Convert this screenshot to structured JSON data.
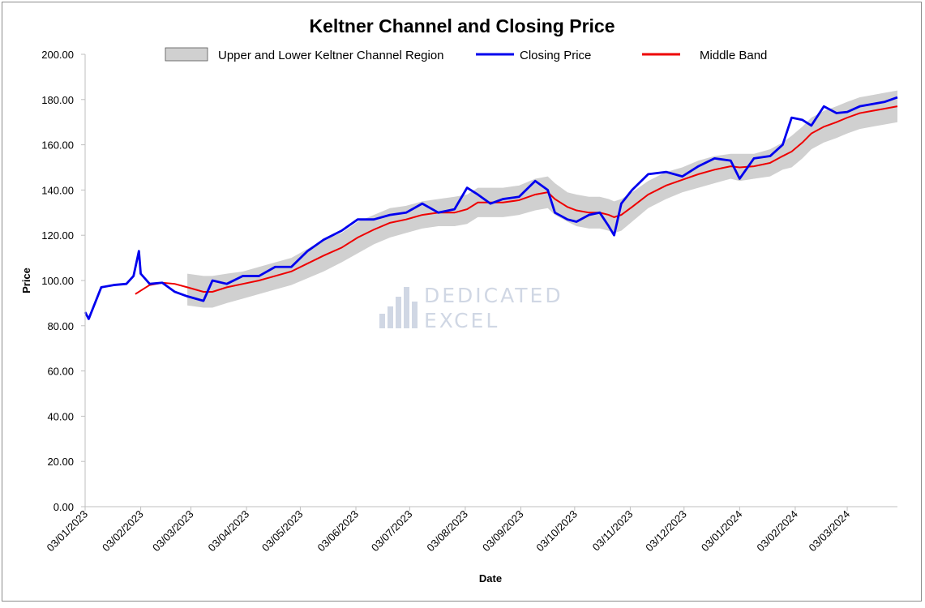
{
  "chart_data": {
    "type": "line",
    "title": "Keltner Channel and Closing Price",
    "xlabel": "Date",
    "ylabel": "Price",
    "ylim": [
      0,
      200
    ],
    "xlim": [
      "2023-01-03",
      "2024-03-31"
    ],
    "y_ticks": [
      "0.00",
      "20.00",
      "40.00",
      "60.00",
      "80.00",
      "100.00",
      "120.00",
      "140.00",
      "160.00",
      "180.00",
      "200.00"
    ],
    "x_ticks": [
      {
        "date": "2023-01-03",
        "label": "03/01/2023"
      },
      {
        "date": "2023-02-03",
        "label": "03/02/2023"
      },
      {
        "date": "2023-03-03",
        "label": "03/03/2023"
      },
      {
        "date": "2023-04-03",
        "label": "03/04/2023"
      },
      {
        "date": "2023-05-03",
        "label": "03/05/2023"
      },
      {
        "date": "2023-06-03",
        "label": "03/06/2023"
      },
      {
        "date": "2023-07-03",
        "label": "03/07/2023"
      },
      {
        "date": "2023-08-03",
        "label": "03/08/2023"
      },
      {
        "date": "2023-09-03",
        "label": "03/09/2023"
      },
      {
        "date": "2023-10-03",
        "label": "03/10/2023"
      },
      {
        "date": "2023-11-03",
        "label": "03/11/2023"
      },
      {
        "date": "2023-12-03",
        "label": "03/12/2023"
      },
      {
        "date": "2024-01-03",
        "label": "03/01/2024"
      },
      {
        "date": "2024-02-03",
        "label": "03/02/2024"
      },
      {
        "date": "2024-03-03",
        "label": "03/03/2024"
      }
    ],
    "grid": false,
    "legend_position": "top",
    "legend": [
      "Upper and Lower Keltner Channel Region",
      "Closing Price",
      "Middle Band"
    ],
    "colors": {
      "band": "#d0d0d0",
      "close": "#0000ee",
      "middle": "#ee0000"
    },
    "watermark": "DEDICATED EXCEL",
    "closing_price": [
      [
        "2023-01-03",
        86
      ],
      [
        "2023-01-05",
        83
      ],
      [
        "2023-01-12",
        97
      ],
      [
        "2023-01-19",
        98
      ],
      [
        "2023-01-26",
        98.5
      ],
      [
        "2023-01-30",
        102
      ],
      [
        "2023-02-02",
        113
      ],
      [
        "2023-02-03",
        103
      ],
      [
        "2023-02-08",
        98.5
      ],
      [
        "2023-02-15",
        99
      ],
      [
        "2023-02-22",
        95
      ],
      [
        "2023-03-01",
        93
      ],
      [
        "2023-03-10",
        91
      ],
      [
        "2023-03-15",
        100
      ],
      [
        "2023-03-23",
        98.5
      ],
      [
        "2023-04-01",
        102
      ],
      [
        "2023-04-10",
        102
      ],
      [
        "2023-04-19",
        106
      ],
      [
        "2023-04-28",
        106
      ],
      [
        "2023-05-07",
        113
      ],
      [
        "2023-05-16",
        118
      ],
      [
        "2023-05-26",
        122
      ],
      [
        "2023-06-04",
        127
      ],
      [
        "2023-06-13",
        127
      ],
      [
        "2023-06-22",
        129
      ],
      [
        "2023-07-01",
        130
      ],
      [
        "2023-07-10",
        134
      ],
      [
        "2023-07-19",
        130
      ],
      [
        "2023-07-28",
        131.5
      ],
      [
        "2023-08-04",
        141
      ],
      [
        "2023-08-10",
        138
      ],
      [
        "2023-08-17",
        134
      ],
      [
        "2023-08-24",
        136
      ],
      [
        "2023-09-02",
        137
      ],
      [
        "2023-09-11",
        144
      ],
      [
        "2023-09-18",
        140
      ],
      [
        "2023-09-22",
        130
      ],
      [
        "2023-09-29",
        127
      ],
      [
        "2023-10-04",
        126
      ],
      [
        "2023-10-11",
        129
      ],
      [
        "2023-10-17",
        130
      ],
      [
        "2023-10-22",
        124
      ],
      [
        "2023-10-25",
        120
      ],
      [
        "2023-10-29",
        134
      ],
      [
        "2023-11-04",
        140
      ],
      [
        "2023-11-13",
        147
      ],
      [
        "2023-11-23",
        148
      ],
      [
        "2023-12-02",
        146
      ],
      [
        "2023-12-11",
        150.5
      ],
      [
        "2023-12-20",
        154
      ],
      [
        "2023-12-29",
        153
      ],
      [
        "2024-01-03",
        145
      ],
      [
        "2024-01-11",
        154
      ],
      [
        "2024-01-20",
        155
      ],
      [
        "2024-01-27",
        160
      ],
      [
        "2024-02-01",
        172
      ],
      [
        "2024-02-07",
        171
      ],
      [
        "2024-02-12",
        168.5
      ],
      [
        "2024-02-19",
        177
      ],
      [
        "2024-02-26",
        174
      ],
      [
        "2024-03-03",
        174.5
      ],
      [
        "2024-03-10",
        177
      ],
      [
        "2024-03-17",
        178
      ],
      [
        "2024-03-24",
        179
      ],
      [
        "2024-03-31",
        181
      ]
    ],
    "middle_band": [
      [
        "2023-01-31",
        94
      ],
      [
        "2023-02-02",
        95
      ],
      [
        "2023-02-08",
        98
      ],
      [
        "2023-02-15",
        99
      ],
      [
        "2023-02-22",
        98.5
      ],
      [
        "2023-03-01",
        97
      ],
      [
        "2023-03-10",
        95
      ],
      [
        "2023-03-15",
        95
      ],
      [
        "2023-03-23",
        97
      ],
      [
        "2023-04-01",
        98.5
      ],
      [
        "2023-04-10",
        100
      ],
      [
        "2023-04-19",
        102
      ],
      [
        "2023-04-28",
        104
      ],
      [
        "2023-05-07",
        107.5
      ],
      [
        "2023-05-16",
        111
      ],
      [
        "2023-05-26",
        114.5
      ],
      [
        "2023-06-04",
        119
      ],
      [
        "2023-06-13",
        122.5
      ],
      [
        "2023-06-22",
        125.5
      ],
      [
        "2023-07-01",
        127
      ],
      [
        "2023-07-10",
        129
      ],
      [
        "2023-07-19",
        130
      ],
      [
        "2023-07-28",
        130
      ],
      [
        "2023-08-04",
        131.5
      ],
      [
        "2023-08-10",
        134.5
      ],
      [
        "2023-08-17",
        134.5
      ],
      [
        "2023-08-24",
        134.5
      ],
      [
        "2023-09-02",
        135.5
      ],
      [
        "2023-09-11",
        138
      ],
      [
        "2023-09-18",
        139
      ],
      [
        "2023-09-22",
        136
      ],
      [
        "2023-09-29",
        132.5
      ],
      [
        "2023-10-04",
        131
      ],
      [
        "2023-10-11",
        130
      ],
      [
        "2023-10-17",
        130
      ],
      [
        "2023-10-22",
        129
      ],
      [
        "2023-10-25",
        128
      ],
      [
        "2023-10-29",
        129
      ],
      [
        "2023-11-04",
        132.5
      ],
      [
        "2023-11-13",
        138
      ],
      [
        "2023-11-23",
        142
      ],
      [
        "2023-12-02",
        144.5
      ],
      [
        "2023-12-11",
        147
      ],
      [
        "2023-12-20",
        149
      ],
      [
        "2023-12-29",
        150.5
      ],
      [
        "2024-01-03",
        150
      ],
      [
        "2024-01-11",
        150.5
      ],
      [
        "2024-01-20",
        152
      ],
      [
        "2024-01-27",
        155
      ],
      [
        "2024-02-01",
        157
      ],
      [
        "2024-02-07",
        161
      ],
      [
        "2024-02-12",
        165
      ],
      [
        "2024-02-19",
        168
      ],
      [
        "2024-02-26",
        170
      ],
      [
        "2024-03-03",
        172
      ],
      [
        "2024-03-10",
        174
      ],
      [
        "2024-03-17",
        175
      ],
      [
        "2024-03-24",
        176
      ],
      [
        "2024-03-31",
        177
      ]
    ],
    "channel": [
      [
        "2023-03-01",
        103,
        89
      ],
      [
        "2023-03-10",
        102,
        88
      ],
      [
        "2023-03-15",
        102,
        88
      ],
      [
        "2023-03-23",
        103,
        90
      ],
      [
        "2023-04-01",
        104,
        92
      ],
      [
        "2023-04-10",
        106,
        94
      ],
      [
        "2023-04-19",
        108,
        96
      ],
      [
        "2023-04-28",
        110,
        98
      ],
      [
        "2023-05-07",
        114,
        101
      ],
      [
        "2023-05-16",
        118,
        104
      ],
      [
        "2023-05-26",
        121,
        108
      ],
      [
        "2023-06-04",
        126,
        112
      ],
      [
        "2023-06-13",
        129,
        116
      ],
      [
        "2023-06-22",
        132,
        119
      ],
      [
        "2023-07-01",
        133,
        121
      ],
      [
        "2023-07-10",
        135,
        123
      ],
      [
        "2023-07-19",
        136,
        124
      ],
      [
        "2023-07-28",
        137,
        124
      ],
      [
        "2023-08-04",
        138,
        125
      ],
      [
        "2023-08-10",
        141,
        128
      ],
      [
        "2023-08-17",
        141,
        128
      ],
      [
        "2023-08-24",
        141,
        128
      ],
      [
        "2023-09-02",
        142,
        129
      ],
      [
        "2023-09-11",
        145,
        131
      ],
      [
        "2023-09-18",
        146,
        132
      ],
      [
        "2023-09-22",
        143,
        129
      ],
      [
        "2023-09-29",
        139,
        126
      ],
      [
        "2023-10-04",
        138,
        124
      ],
      [
        "2023-10-11",
        137,
        123
      ],
      [
        "2023-10-17",
        137,
        123
      ],
      [
        "2023-10-22",
        136,
        122
      ],
      [
        "2023-10-25",
        135,
        121
      ],
      [
        "2023-10-29",
        136,
        122
      ],
      [
        "2023-11-04",
        139,
        126
      ],
      [
        "2023-11-13",
        144,
        132
      ],
      [
        "2023-11-23",
        148,
        136
      ],
      [
        "2023-12-02",
        150,
        139
      ],
      [
        "2023-12-11",
        153,
        141
      ],
      [
        "2023-12-20",
        155,
        143
      ],
      [
        "2023-12-29",
        156,
        145
      ],
      [
        "2024-01-03",
        156,
        144
      ],
      [
        "2024-01-11",
        156,
        145
      ],
      [
        "2024-01-20",
        158,
        146
      ],
      [
        "2024-01-27",
        161,
        149
      ],
      [
        "2024-02-01",
        164,
        150
      ],
      [
        "2024-02-07",
        168,
        154
      ],
      [
        "2024-02-12",
        172,
        158
      ],
      [
        "2024-02-19",
        175,
        161
      ],
      [
        "2024-02-26",
        177,
        163
      ],
      [
        "2024-03-03",
        179,
        165
      ],
      [
        "2024-03-10",
        181,
        167
      ],
      [
        "2024-03-17",
        182,
        168
      ],
      [
        "2024-03-24",
        183,
        169
      ],
      [
        "2024-03-31",
        184,
        170
      ]
    ]
  }
}
